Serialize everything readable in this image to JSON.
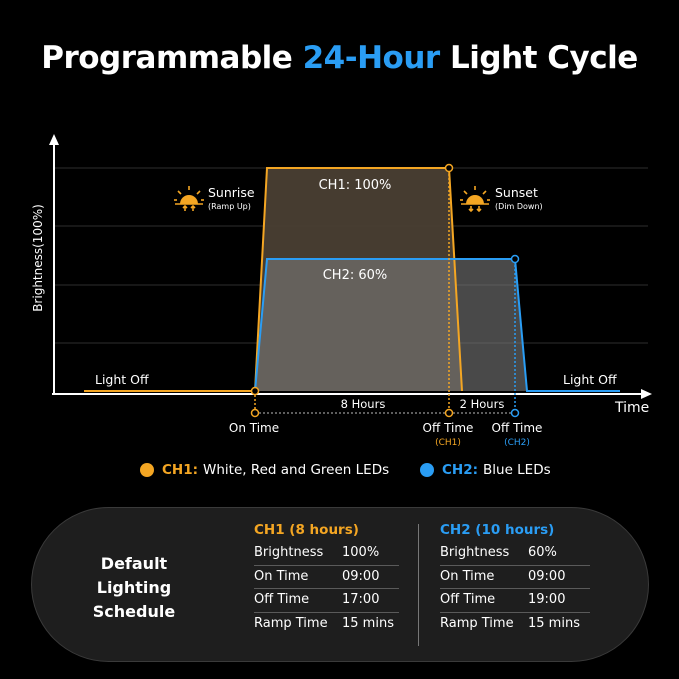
{
  "title": {
    "prefix": "Programmable ",
    "highlight": "24-Hour",
    "suffix": " Light Cycle"
  },
  "colors": {
    "ch1": "#f4a623",
    "ch2": "#2a9df4",
    "ch1_fill": "#4a3f33",
    "ch2_fill": "#5b5b5b",
    "axis": "#ffffff"
  },
  "axis": {
    "y_label": "Brightness(100%)",
    "x_label": "Time"
  },
  "chart_data": {
    "type": "area",
    "series": [
      {
        "name": "CH1: 100%",
        "on_hour": 9,
        "off_hour": 17,
        "brightness": 100,
        "ramp_mins": 15
      },
      {
        "name": "CH2: 60%",
        "on_hour": 9,
        "off_hour": 19,
        "brightness": 60,
        "ramp_mins": 15
      }
    ]
  },
  "annotations": {
    "sunrise": "Sunrise",
    "sunrise_sub": "(Ramp Up)",
    "sunset": "Sunset",
    "sunset_sub": "(Dim Down)",
    "ch1_label": "CH1: 100%",
    "ch2_label": "CH2: 60%",
    "light_off_left": "Light Off",
    "light_off_right": "Light Off",
    "hours_ch1": "8 Hours",
    "hours_ch2": "2 Hours",
    "on_time": "On Time",
    "off_time_ch1": "Off Time",
    "off_time_ch1_sub": "(CH1)",
    "off_time_ch2": "Off Time",
    "off_time_ch2_sub": "(CH2)"
  },
  "legend": [
    {
      "key": "CH1:",
      "text": "White, Red and Green LEDs"
    },
    {
      "key": "CH2:",
      "text": "Blue LEDs"
    }
  ],
  "schedule": {
    "label_line1": "Default Lighting",
    "label_line2": "Schedule",
    "ch1": {
      "header": "CH1 (8 hours)",
      "rows": [
        {
          "k": "Brightness",
          "v": "100%"
        },
        {
          "k": "On Time",
          "v": "09:00"
        },
        {
          "k": "Off Time",
          "v": "17:00"
        },
        {
          "k": "Ramp Time",
          "v": "15 mins"
        }
      ]
    },
    "ch2": {
      "header": "CH2 (10 hours)",
      "rows": [
        {
          "k": "Brightness",
          "v": "60%"
        },
        {
          "k": "On Time",
          "v": "09:00"
        },
        {
          "k": "Off Time",
          "v": "19:00"
        },
        {
          "k": "Ramp Time",
          "v": "15 mins"
        }
      ]
    }
  }
}
